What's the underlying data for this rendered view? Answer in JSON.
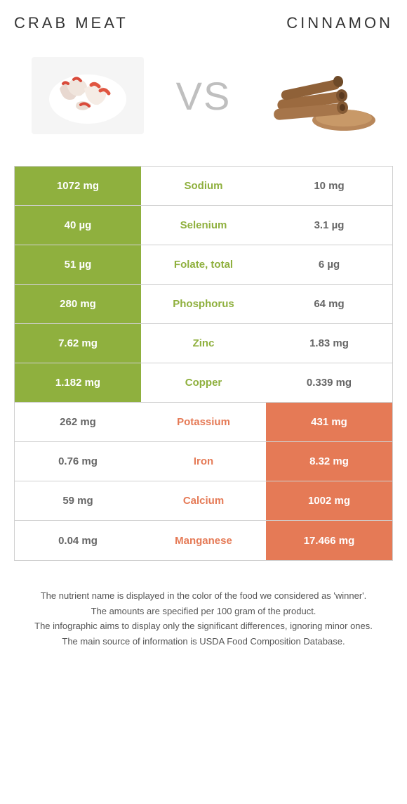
{
  "colors": {
    "food1": "#8fb03e",
    "food2": "#e57a56",
    "neutral": "#ffffff",
    "border": "#d0d0d0",
    "text_dark": "#333333",
    "text_footer": "#555555",
    "vs": "#bfbfbf"
  },
  "food1": {
    "title": "CRAB MEAT"
  },
  "food2": {
    "title": "CINNAMON"
  },
  "vs_label": "VS",
  "rows": [
    {
      "nutrient": "Sodium",
      "v1": "1072 mg",
      "v2": "10 mg",
      "winner": 1
    },
    {
      "nutrient": "Selenium",
      "v1": "40 µg",
      "v2": "3.1 µg",
      "winner": 1
    },
    {
      "nutrient": "Folate, total",
      "v1": "51 µg",
      "v2": "6 µg",
      "winner": 1
    },
    {
      "nutrient": "Phosphorus",
      "v1": "280 mg",
      "v2": "64 mg",
      "winner": 1
    },
    {
      "nutrient": "Zinc",
      "v1": "7.62 mg",
      "v2": "1.83 mg",
      "winner": 1
    },
    {
      "nutrient": "Copper",
      "v1": "1.182 mg",
      "v2": "0.339 mg",
      "winner": 1
    },
    {
      "nutrient": "Potassium",
      "v1": "262 mg",
      "v2": "431 mg",
      "winner": 2
    },
    {
      "nutrient": "Iron",
      "v1": "0.76 mg",
      "v2": "8.32 mg",
      "winner": 2
    },
    {
      "nutrient": "Calcium",
      "v1": "59 mg",
      "v2": "1002 mg",
      "winner": 2
    },
    {
      "nutrient": "Manganese",
      "v1": "0.04 mg",
      "v2": "17.466 mg",
      "winner": 2
    }
  ],
  "footer": {
    "line1": "The nutrient name is displayed in the color of the food we considered as 'winner'.",
    "line2": "The amounts are specified per 100 gram of the product.",
    "line3": "The infographic aims to display only the significant differences, ignoring minor ones.",
    "line4": "The main source of information is USDA Food Composition Database."
  }
}
